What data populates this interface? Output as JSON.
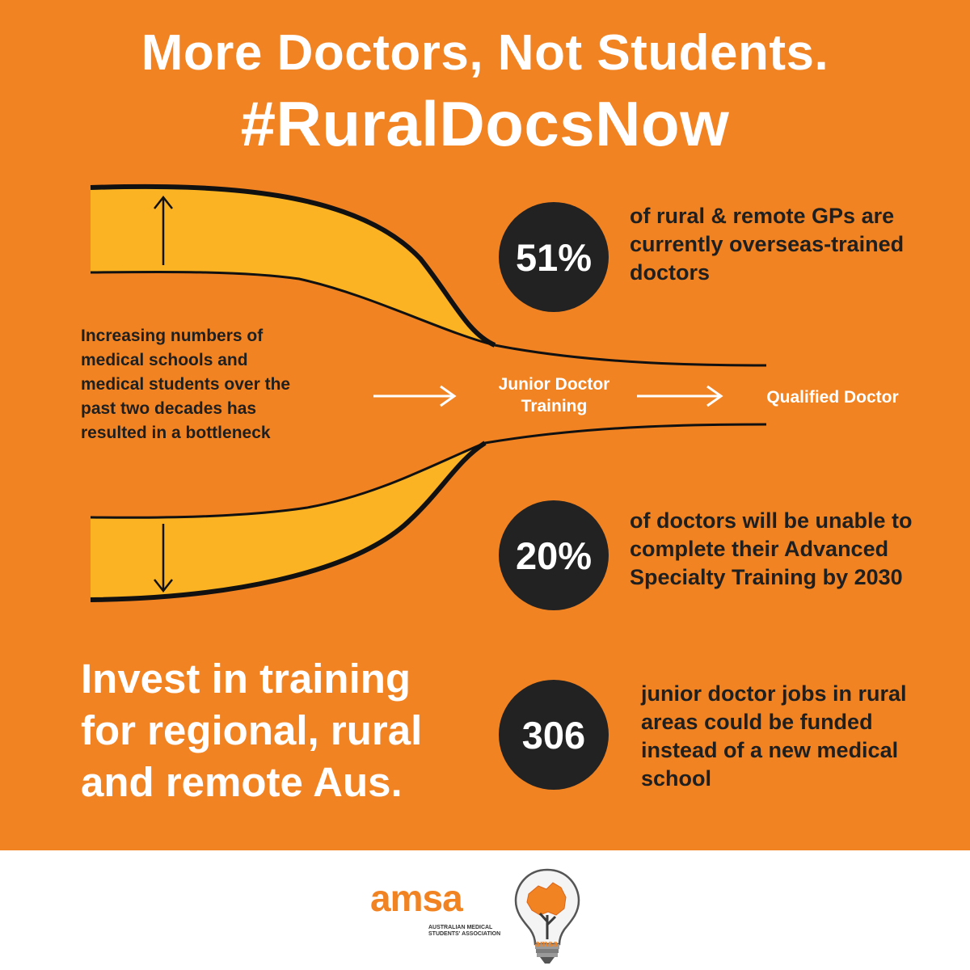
{
  "header": {
    "line1": "More Doctors, Not Students.",
    "line2": "#RuralDocsNow"
  },
  "funnel": {
    "description": "Increasing numbers of medical schools and medical students over the past two decades has resulted in a bottleneck",
    "stage_training": "Junior Doctor Training",
    "stage_qualified": "Qualified Doctor",
    "colors": {
      "fill": "#fbb324",
      "line": "#111111",
      "arrow": "#ffffff"
    }
  },
  "stats": [
    {
      "value": "51%",
      "text": "of rural & remote GPs are currently overseas-trained doctors"
    },
    {
      "value": "20%",
      "text": "of doctors will be unable to complete their Advanced Specialty Training by 2030"
    },
    {
      "value": "306",
      "text": "junior doctor jobs in rural areas could be funded instead of a new medical school"
    }
  ],
  "cta": "Invest in training for regional, rural and remote Aus.",
  "footer": {
    "logo_word": "amsa",
    "logo_subtitle": "AUSTRALIAN MEDICAL STUDENTS' ASSOCIATION",
    "bulb_word": "amsa",
    "bulb_icon": "lightbulb-australia-icon"
  },
  "colors": {
    "background": "#f28322",
    "circle": "#222222",
    "footer": "#ffffff"
  }
}
